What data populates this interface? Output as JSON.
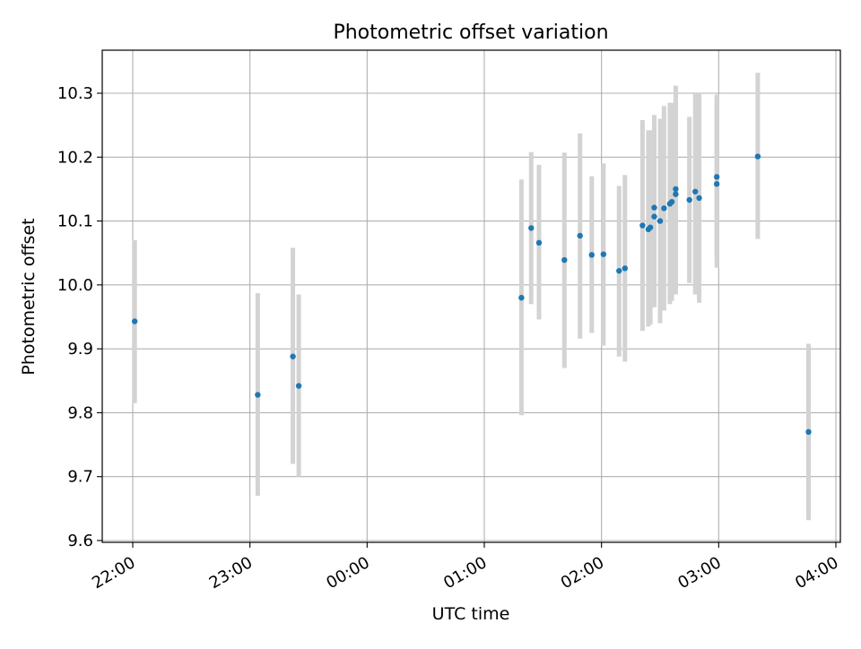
{
  "chart_data": {
    "type": "scatter",
    "title": "Photometric offset variation",
    "xlabel": "UTC time",
    "ylabel": "Photometric offset",
    "x_tick_labels": [
      "22:00",
      "23:00",
      "00:00",
      "01:00",
      "02:00",
      "03:00",
      "04:00"
    ],
    "y_tick_labels": [
      "9.6",
      "9.7",
      "9.8",
      "9.9",
      "10.0",
      "10.1",
      "10.2",
      "10.3"
    ],
    "grid": true,
    "colors": {
      "point": "#1f77b4",
      "errorbar": "#d3d3d3",
      "grid": "#b0b0b0"
    },
    "points": [
      {
        "x": "22:01",
        "y": 9.943,
        "low": 9.815,
        "high": 10.07
      },
      {
        "x": "23:04",
        "y": 9.828,
        "low": 9.67,
        "high": 9.987
      },
      {
        "x": "23:22",
        "y": 9.888,
        "low": 9.72,
        "high": 10.058
      },
      {
        "x": "23:25",
        "y": 9.842,
        "low": 9.7,
        "high": 9.985
      },
      {
        "x": "01:19",
        "y": 9.98,
        "low": 9.796,
        "high": 10.165
      },
      {
        "x": "01:24",
        "y": 10.089,
        "low": 9.97,
        "high": 10.208
      },
      {
        "x": "01:28",
        "y": 10.066,
        "low": 9.946,
        "high": 10.188
      },
      {
        "x": "01:41",
        "y": 10.039,
        "low": 9.87,
        "high": 10.207
      },
      {
        "x": "01:49",
        "y": 10.077,
        "low": 9.916,
        "high": 10.237
      },
      {
        "x": "01:55",
        "y": 10.047,
        "low": 9.925,
        "high": 10.17
      },
      {
        "x": "02:01",
        "y": 10.048,
        "low": 9.905,
        "high": 10.19
      },
      {
        "x": "02:09",
        "y": 10.022,
        "low": 9.888,
        "high": 10.155
      },
      {
        "x": "02:12",
        "y": 10.026,
        "low": 9.88,
        "high": 10.172
      },
      {
        "x": "02:21",
        "y": 10.093,
        "low": 9.928,
        "high": 10.258
      },
      {
        "x": "02:24",
        "y": 10.087,
        "low": 9.935,
        "high": 10.242
      },
      {
        "x": "02:25",
        "y": 10.09,
        "low": 9.938,
        "high": 10.242
      },
      {
        "x": "02:27",
        "y": 10.121,
        "low": 9.975,
        "high": 10.266
      },
      {
        "x": "02:27",
        "y": 10.107,
        "low": 9.965,
        "high": 10.25
      },
      {
        "x": "02:30",
        "y": 10.1,
        "low": 9.94,
        "high": 10.26
      },
      {
        "x": "02:32",
        "y": 10.12,
        "low": 9.96,
        "high": 10.28
      },
      {
        "x": "02:35",
        "y": 10.127,
        "low": 9.97,
        "high": 10.285
      },
      {
        "x": "02:36",
        "y": 10.13,
        "low": 9.975,
        "high": 10.285
      },
      {
        "x": "02:38",
        "y": 10.15,
        "low": 9.99,
        "high": 10.312
      },
      {
        "x": "02:38",
        "y": 10.142,
        "low": 9.985,
        "high": 10.3
      },
      {
        "x": "02:45",
        "y": 10.133,
        "low": 10.003,
        "high": 10.263
      },
      {
        "x": "02:48",
        "y": 10.146,
        "low": 9.985,
        "high": 10.3
      },
      {
        "x": "02:50",
        "y": 10.136,
        "low": 9.972,
        "high": 10.3
      },
      {
        "x": "02:59",
        "y": 10.158,
        "low": 10.027,
        "high": 10.29
      },
      {
        "x": "02:59",
        "y": 10.169,
        "low": 10.04,
        "high": 10.298
      },
      {
        "x": "03:20",
        "y": 10.201,
        "low": 10.072,
        "high": 10.332
      },
      {
        "x": "03:46",
        "y": 9.77,
        "low": 9.632,
        "high": 9.908
      }
    ]
  }
}
